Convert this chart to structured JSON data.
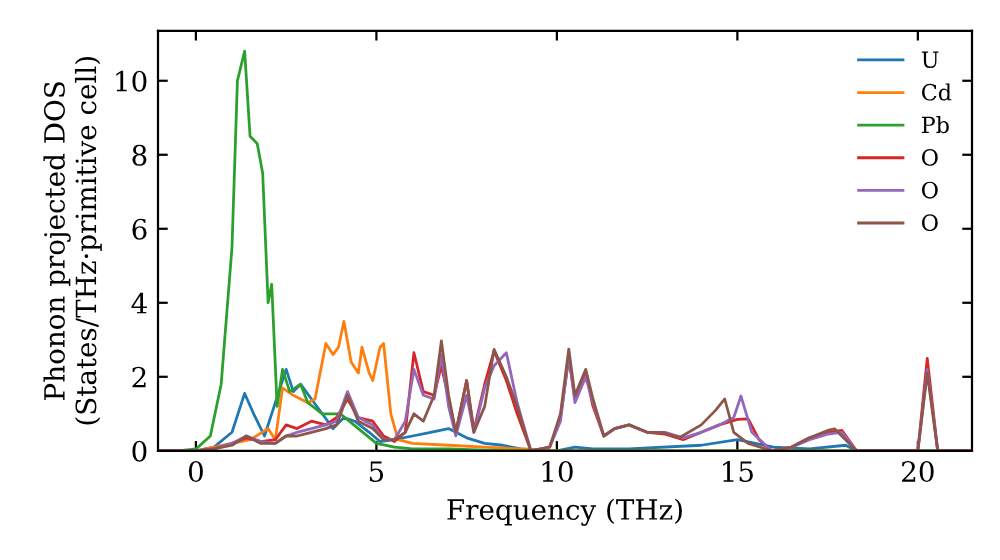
{
  "chart_data": {
    "type": "line",
    "xlabel": "Frequency (THz)",
    "ylabel": "Phonon projected DOS\n(States/THz·primitive cell)",
    "xlim": [
      -1.05,
      21.5
    ],
    "ylim": [
      0,
      11.35
    ],
    "xticks": [
      0,
      5,
      10,
      15,
      20
    ],
    "yticks": [
      0,
      2,
      4,
      6,
      8,
      10
    ],
    "grid": false,
    "legend": "top right",
    "marker": "none",
    "line_style": "solid",
    "series": [
      {
        "name": "U",
        "color": "#1f77b4",
        "x": [
          -1,
          0,
          0.5,
          1.0,
          1.35,
          1.6,
          1.9,
          2.2,
          2.5,
          2.7,
          2.9,
          3.2,
          3.5,
          3.8,
          4.1,
          4.4,
          4.8,
          5.1,
          5.5,
          6.0,
          6.5,
          7.0,
          7.5,
          8.0,
          8.5,
          9.0,
          10.0,
          10.5,
          11.0,
          12.0,
          14.0,
          15.0,
          16.0,
          17.0,
          18.0,
          18.3,
          21.5
        ],
        "values": [
          0,
          0,
          0.1,
          0.5,
          1.55,
          1.0,
          0.4,
          1.3,
          2.2,
          1.6,
          1.8,
          1.4,
          1.0,
          0.6,
          0.9,
          0.8,
          0.5,
          0.25,
          0.3,
          0.4,
          0.5,
          0.6,
          0.35,
          0.2,
          0.15,
          0.05,
          0,
          0.1,
          0.05,
          0.05,
          0.15,
          0.3,
          0.1,
          0.05,
          0.15,
          0,
          0
        ]
      },
      {
        "name": "Cd",
        "color": "#ff7f0e",
        "x": [
          -1,
          0,
          1.0,
          1.5,
          2.0,
          2.2,
          2.4,
          2.7,
          3.1,
          3.3,
          3.6,
          3.8,
          3.95,
          4.1,
          4.3,
          4.5,
          4.6,
          4.8,
          4.9,
          5.1,
          5.2,
          5.4,
          5.6,
          6.0,
          7.0,
          8.0,
          9.0,
          10.0,
          21.5
        ],
        "values": [
          0,
          0,
          0.2,
          0.3,
          0.6,
          0.3,
          1.7,
          1.5,
          1.3,
          1.4,
          2.9,
          2.6,
          2.8,
          3.5,
          2.4,
          2.1,
          2.8,
          2.1,
          1.9,
          2.8,
          2.9,
          1.0,
          0.3,
          0.2,
          0.15,
          0.1,
          0.05,
          0,
          0
        ]
      },
      {
        "name": "Pb",
        "color": "#2ca02c",
        "x": [
          -1,
          -0.5,
          0,
          0.4,
          0.7,
          1.0,
          1.15,
          1.35,
          1.5,
          1.7,
          1.85,
          2.0,
          2.1,
          2.25,
          2.4,
          2.6,
          2.9,
          3.1,
          3.5,
          4.0,
          4.5,
          5.0,
          5.5,
          6.0,
          7.0,
          8.0,
          9.0,
          21.5
        ],
        "values": [
          0,
          0,
          0.05,
          0.4,
          1.8,
          5.5,
          10.0,
          10.8,
          8.5,
          8.3,
          7.5,
          4.0,
          4.5,
          1.2,
          2.2,
          1.6,
          1.8,
          1.3,
          1.0,
          1.0,
          0.6,
          0.2,
          0.1,
          0.05,
          0.05,
          0.02,
          0,
          0
        ]
      },
      {
        "name": "O",
        "color": "#d62728",
        "x": [
          -1,
          0,
          0.5,
          1.0,
          1.4,
          1.8,
          2.2,
          2.5,
          2.8,
          3.2,
          3.6,
          3.9,
          4.2,
          4.5,
          4.9,
          5.2,
          5.5,
          5.8,
          6.04,
          6.3,
          6.6,
          6.8,
          7.0,
          7.2,
          7.5,
          7.7,
          8.0,
          8.26,
          8.6,
          8.9,
          9.28,
          9.8,
          10.1,
          10.33,
          10.5,
          10.8,
          11.0,
          11.3,
          11.6,
          12.0,
          12.5,
          13.0,
          13.5,
          14.0,
          14.5,
          15.0,
          15.3,
          15.6,
          15.95,
          16.5,
          17.0,
          17.5,
          17.9,
          18.3,
          20.0,
          20.26,
          20.55,
          21.5
        ],
        "values": [
          0,
          0,
          0.05,
          0.2,
          0.35,
          0.25,
          0.3,
          0.7,
          0.6,
          0.8,
          0.7,
          0.9,
          1.4,
          0.9,
          0.8,
          0.4,
          0.25,
          0.5,
          2.65,
          1.6,
          1.5,
          2.3,
          1.4,
          0.5,
          1.9,
          0.55,
          1.8,
          2.7,
          1.9,
          1.0,
          0,
          0.1,
          0.9,
          2.5,
          1.4,
          2.1,
          1.2,
          0.4,
          0.6,
          0.7,
          0.5,
          0.45,
          0.3,
          0.5,
          0.7,
          0.85,
          0.86,
          0.3,
          0,
          0.1,
          0.35,
          0.5,
          0.55,
          0,
          0,
          2.5,
          0,
          0
        ]
      },
      {
        "name": "O",
        "color": "#9467bd",
        "x": [
          -1,
          0,
          0.5,
          1.0,
          1.4,
          1.8,
          2.2,
          2.5,
          2.8,
          3.2,
          3.6,
          3.9,
          4.2,
          4.5,
          4.9,
          5.2,
          5.5,
          5.8,
          6.04,
          6.3,
          6.6,
          6.8,
          7.0,
          7.2,
          7.5,
          7.7,
          8.0,
          8.26,
          8.6,
          8.9,
          9.28,
          9.8,
          10.1,
          10.33,
          10.5,
          10.8,
          11.0,
          11.3,
          11.6,
          12.0,
          12.5,
          13.0,
          13.5,
          14.0,
          14.5,
          14.9,
          15.1,
          15.4,
          15.95,
          16.5,
          17.0,
          17.5,
          17.9,
          18.3,
          20.0,
          20.26,
          20.55,
          21.5
        ],
        "values": [
          0,
          0,
          0.05,
          0.2,
          0.4,
          0.25,
          0.2,
          0.4,
          0.5,
          0.6,
          0.7,
          0.8,
          1.6,
          0.9,
          0.7,
          0.3,
          0.3,
          0.8,
          2.2,
          1.5,
          1.4,
          2.6,
          1.2,
          0.4,
          1.5,
          0.5,
          1.7,
          2.3,
          2.65,
          1.3,
          0,
          0.1,
          0.8,
          2.6,
          1.3,
          2.0,
          1.3,
          0.4,
          0.6,
          0.7,
          0.5,
          0.5,
          0.35,
          0.5,
          0.7,
          0.9,
          1.48,
          0.5,
          0,
          0.1,
          0.3,
          0.45,
          0.5,
          0,
          0,
          2.2,
          0,
          0
        ]
      },
      {
        "name": "O",
        "color": "#8c564b",
        "x": [
          -1,
          0,
          0.5,
          1.0,
          1.4,
          1.8,
          2.2,
          2.5,
          2.8,
          3.2,
          3.6,
          3.9,
          4.2,
          4.5,
          4.9,
          5.2,
          5.5,
          5.8,
          6.04,
          6.3,
          6.6,
          6.8,
          7.0,
          7.2,
          7.5,
          7.7,
          8.0,
          8.26,
          8.6,
          8.9,
          9.28,
          9.8,
          10.1,
          10.33,
          10.5,
          10.8,
          11.0,
          11.3,
          11.6,
          12.0,
          12.5,
          12.9,
          13.4,
          14.0,
          14.4,
          14.65,
          14.9,
          15.3,
          15.95,
          16.5,
          17.0,
          17.5,
          17.7,
          18.3,
          20.0,
          20.26,
          20.55,
          21.5
        ],
        "values": [
          0,
          0,
          0.05,
          0.15,
          0.4,
          0.2,
          0.2,
          0.4,
          0.4,
          0.5,
          0.6,
          0.7,
          1.5,
          0.8,
          0.6,
          0.3,
          0.3,
          0.5,
          1.0,
          0.8,
          1.5,
          2.97,
          1.5,
          0.5,
          1.9,
          0.5,
          1.2,
          2.74,
          2.0,
          1.2,
          0,
          0.1,
          1.0,
          2.75,
          1.5,
          2.2,
          1.4,
          0.4,
          0.6,
          0.7,
          0.5,
          0.5,
          0.36,
          0.7,
          1.1,
          1.4,
          0.5,
          0.2,
          0,
          0.1,
          0.35,
          0.55,
          0.59,
          0,
          0,
          2.1,
          0,
          0
        ]
      }
    ]
  }
}
